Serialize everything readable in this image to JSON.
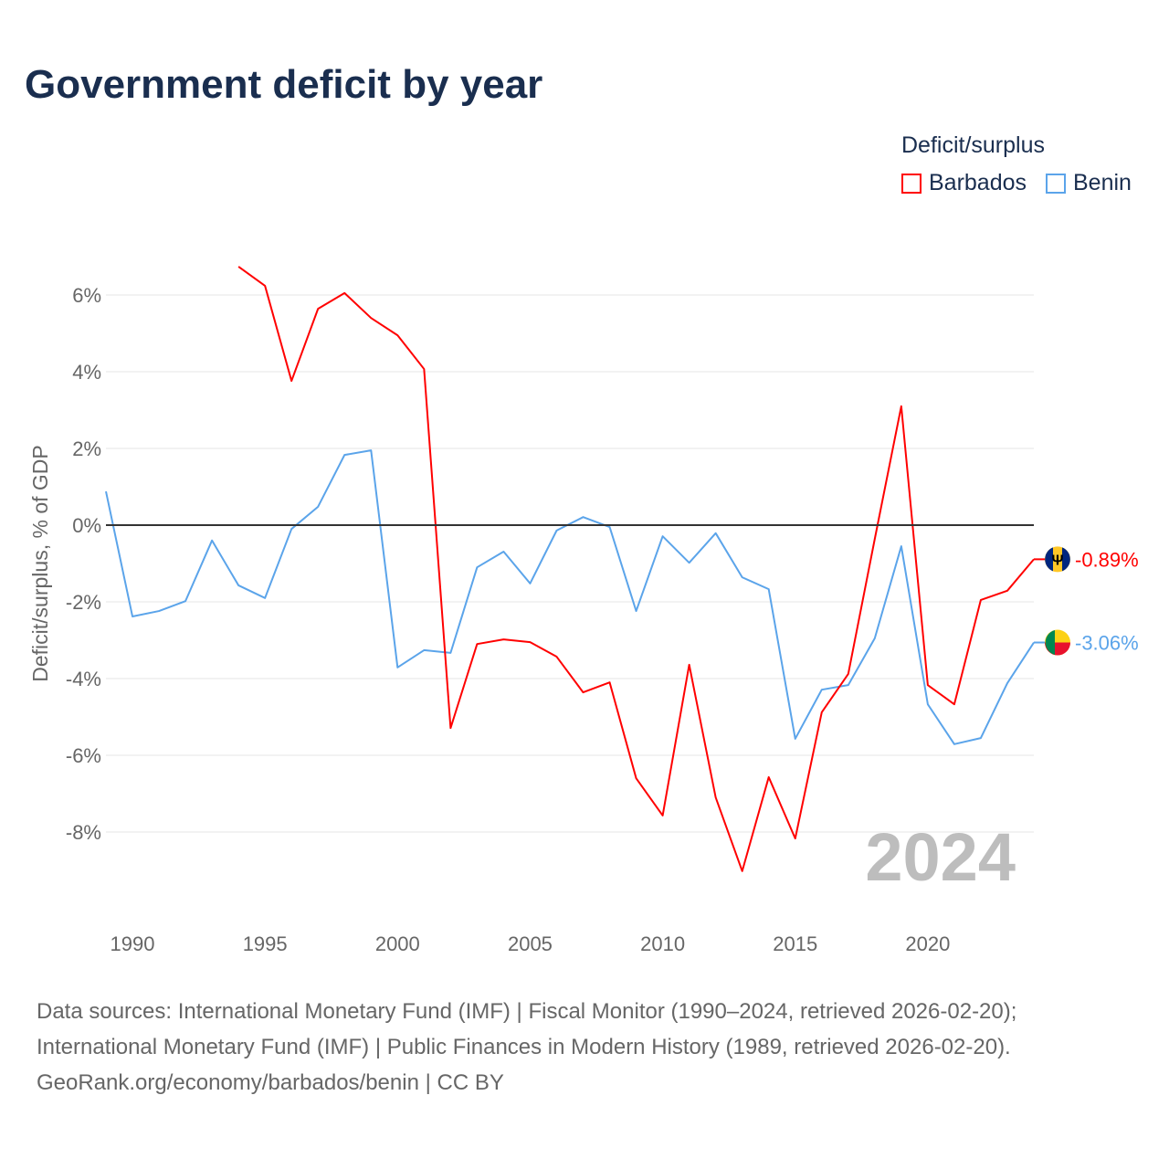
{
  "title": "Government deficit by year",
  "legend": {
    "title": "Deficit/surplus",
    "items": [
      {
        "label": "Barbados",
        "color": "#ff0000"
      },
      {
        "label": "Benin",
        "color": "#5ba4ea"
      }
    ]
  },
  "source_lines": [
    "Data sources: International Monetary Fund (IMF) | Fiscal Monitor (1990–2024, retrieved 2026-02-20);",
    "International Monetary Fund (IMF) | Public Finances in Modern History (1989, retrieved 2026-02-20).",
    "GeoRank.org/economy/barbados/benin | CC BY"
  ],
  "chart_data": {
    "type": "line",
    "title": "Government deficit by year",
    "ylabel": "Deficit/surplus, % of GDP",
    "xlabel": "",
    "xlim": [
      1989,
      2024
    ],
    "ylim": [
      -10,
      7.7
    ],
    "yticks": [
      6,
      4,
      2,
      0,
      -2,
      -4,
      -6,
      -8
    ],
    "ytick_labels": [
      "6%",
      "4%",
      "2%",
      "0%",
      "-2%",
      "-4%",
      "-6%",
      "-8%"
    ],
    "xticks": [
      1990,
      1995,
      2000,
      2005,
      2010,
      2015,
      2020
    ],
    "xtick_labels": [
      "1990",
      "1995",
      "2000",
      "2005",
      "2010",
      "2015",
      "2020"
    ],
    "watermark_year": "2024",
    "series": [
      {
        "name": "Barbados",
        "color": "#ff0000",
        "end_label": "-0.89%",
        "x_start": 1994,
        "values": [
          6.74,
          6.24,
          3.76,
          5.64,
          6.05,
          5.4,
          4.95,
          4.07,
          -5.29,
          -3.1,
          -2.98,
          -3.05,
          -3.43,
          -4.36,
          -4.1,
          -6.6,
          -7.57,
          -3.64,
          -7.1,
          -9.02,
          -6.57,
          -8.17,
          -4.88,
          -3.88,
          -0.36,
          3.1,
          -4.17,
          -4.67,
          -1.95,
          -1.71,
          -0.89
        ]
      },
      {
        "name": "Benin",
        "color": "#5ba4ea",
        "end_label": "-3.06%",
        "x_start": 1989,
        "values": [
          0.88,
          -2.38,
          -2.24,
          -1.98,
          -0.4,
          -1.57,
          -1.9,
          -0.1,
          0.48,
          1.83,
          1.95,
          -3.71,
          -3.26,
          -3.33,
          -1.1,
          -0.69,
          -1.52,
          -0.14,
          0.21,
          -0.05,
          -2.24,
          -0.29,
          -0.98,
          -0.21,
          -1.36,
          -1.67,
          -5.57,
          -4.29,
          -4.17,
          -2.95,
          -0.55,
          -4.67,
          -5.71,
          -5.55,
          -4.12,
          -3.06
        ]
      }
    ]
  }
}
